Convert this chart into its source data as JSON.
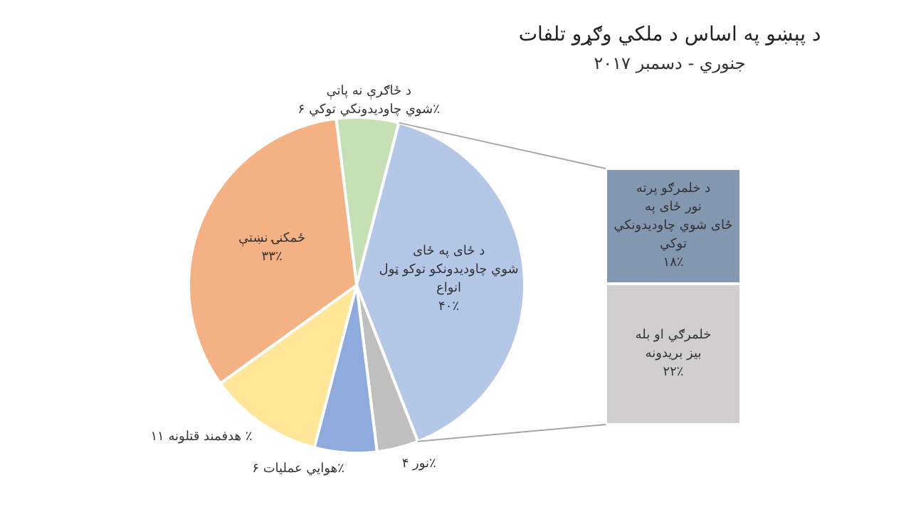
{
  "chart_data": [
    {
      "type": "pie",
      "title": "د پېښو په اساس د ملکي وګړو تلفات",
      "subtitle": "جنوري - دسمبر ۲۰۱۷",
      "categories": [
        "د ځاګرې نه پاتې شوي چاودیدونکي توکي",
        "د ځای په ځای شوي چاودیدونکو توکو ټول انواع",
        "نور",
        "هوایي عملیات",
        "هدفمند قتلونه",
        "ځمکنۍ نښتې"
      ],
      "values": [
        6,
        40,
        4,
        6,
        11,
        33
      ],
      "value_labels": [
        "۶٪",
        "۴۰٪",
        "۴٪",
        "۶٪",
        "۱۱ ٪",
        "۳۳٪"
      ],
      "colors": [
        "#c5e0b4",
        "#b4c7e7",
        "#bfbfbf",
        "#8faadc",
        "#ffe699",
        "#f4b183"
      ]
    },
    {
      "type": "bar",
      "stacked": true,
      "categories": [
        null
      ],
      "series": [
        {
          "name": "خلمرګي او بله بیز بریدونه",
          "color": "#d0cece",
          "values": [
            22
          ],
          "value_labels": [
            "۲۲٪"
          ]
        },
        {
          "name": "د خلمرګو پرته نور ځای په ځای شوي چاودیدونکي توکي",
          "color": "#8497b0",
          "values": [
            18
          ],
          "value_labels": [
            "۱۸٪"
          ]
        }
      ]
    }
  ]
}
